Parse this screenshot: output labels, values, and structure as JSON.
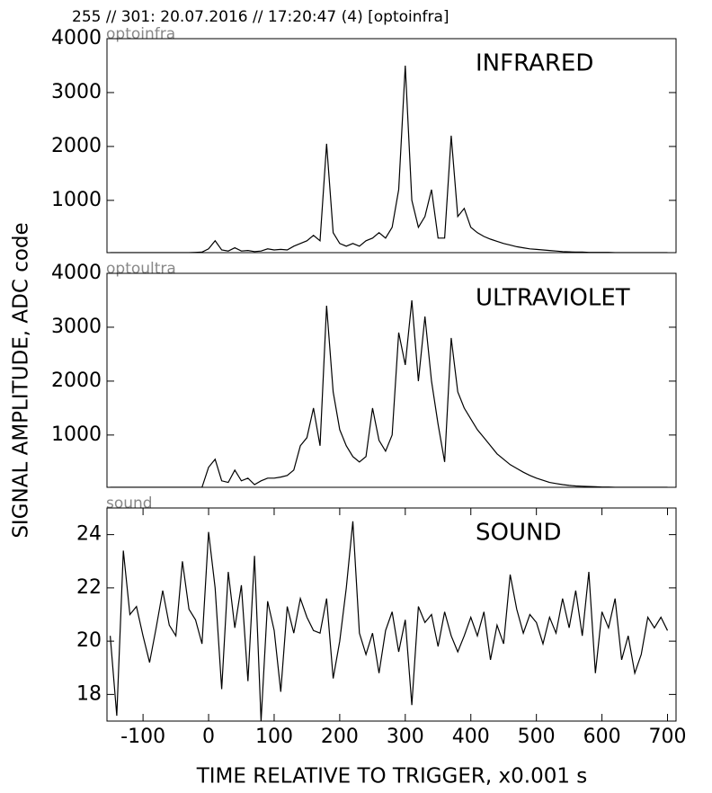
{
  "title": "255 // 301:   20.07.2016 // 17:20:47 (4)  [optoinfra]",
  "ylabel": "SIGNAL AMPLITUDE,  ADC code",
  "chart_data": [
    {
      "type": "line",
      "source": "optoinfra",
      "label": "INFRARED",
      "color": "#000000",
      "xlim": [
        -155,
        713
      ],
      "ylim": [
        30,
        4000
      ],
      "yticks": [
        1000,
        2000,
        3000,
        4000
      ],
      "x": [
        -150,
        -140,
        -130,
        -120,
        -110,
        -100,
        -90,
        -80,
        -70,
        -60,
        -50,
        -40,
        -30,
        -20,
        -10,
        0,
        10,
        20,
        30,
        40,
        50,
        60,
        70,
        80,
        90,
        100,
        110,
        120,
        130,
        140,
        150,
        160,
        170,
        180,
        190,
        200,
        210,
        220,
        230,
        240,
        250,
        260,
        270,
        280,
        290,
        300,
        310,
        320,
        330,
        340,
        350,
        360,
        370,
        380,
        390,
        400,
        410,
        420,
        430,
        440,
        450,
        460,
        470,
        480,
        490,
        500,
        510,
        520,
        530,
        540,
        550,
        560,
        570,
        580,
        590,
        600,
        610,
        620,
        630,
        640,
        650,
        660,
        670,
        680,
        690,
        700
      ],
      "values": [
        30,
        30,
        30,
        30,
        30,
        30,
        30,
        30,
        30,
        30,
        30,
        30,
        30,
        35,
        40,
        100,
        250,
        80,
        60,
        120,
        60,
        70,
        50,
        60,
        100,
        80,
        90,
        80,
        150,
        200,
        250,
        350,
        250,
        2050,
        400,
        200,
        150,
        200,
        150,
        250,
        300,
        400,
        300,
        500,
        1200,
        3500,
        1000,
        500,
        700,
        1200,
        300,
        300,
        2200,
        700,
        850,
        500,
        400,
        330,
        280,
        240,
        200,
        170,
        140,
        120,
        100,
        90,
        80,
        70,
        60,
        50,
        45,
        40,
        40,
        35,
        35,
        35,
        35,
        30,
        30,
        30,
        30,
        30,
        30,
        30,
        30,
        30
      ]
    },
    {
      "type": "line",
      "source": "optoultra",
      "label": "ULTRAVIOLET",
      "color": "#000000",
      "xlim": [
        -155,
        713
      ],
      "ylim": [
        30,
        4000
      ],
      "yticks": [
        1000,
        2000,
        3000,
        4000
      ],
      "x": [
        -150,
        -140,
        -130,
        -120,
        -110,
        -100,
        -90,
        -80,
        -70,
        -60,
        -50,
        -40,
        -30,
        -20,
        -10,
        0,
        10,
        20,
        30,
        40,
        50,
        60,
        70,
        80,
        90,
        100,
        110,
        120,
        130,
        140,
        150,
        160,
        170,
        180,
        190,
        200,
        210,
        220,
        230,
        240,
        250,
        260,
        270,
        280,
        290,
        300,
        310,
        320,
        330,
        340,
        350,
        360,
        370,
        380,
        390,
        400,
        410,
        420,
        430,
        440,
        450,
        460,
        470,
        480,
        490,
        500,
        510,
        520,
        530,
        540,
        550,
        560,
        570,
        580,
        590,
        600,
        610,
        620,
        630,
        640,
        650,
        660,
        670,
        680,
        690,
        700
      ],
      "values": [
        30,
        30,
        30,
        30,
        30,
        30,
        30,
        30,
        30,
        30,
        30,
        30,
        30,
        30,
        30,
        400,
        550,
        150,
        120,
        350,
        150,
        200,
        80,
        150,
        200,
        200,
        220,
        250,
        350,
        800,
        950,
        1500,
        800,
        3400,
        1800,
        1100,
        800,
        600,
        500,
        600,
        1500,
        900,
        700,
        1000,
        2900,
        2300,
        3500,
        2000,
        3200,
        2000,
        1200,
        500,
        2800,
        1800,
        1500,
        1300,
        1100,
        950,
        800,
        650,
        550,
        450,
        380,
        310,
        250,
        200,
        160,
        120,
        100,
        80,
        65,
        55,
        50,
        45,
        40,
        35,
        35,
        30,
        30,
        30,
        30,
        30,
        30,
        30,
        30,
        30
      ]
    },
    {
      "type": "line",
      "source": "sound",
      "label": "SOUND",
      "color": "#000000",
      "xlim": [
        -155,
        713
      ],
      "ylim": [
        17,
        25
      ],
      "yticks": [
        18,
        20,
        22,
        24
      ],
      "xlabel": "TIME RELATIVE TO TRIGGER,   x0.001 s",
      "xticks": [
        -100,
        0,
        100,
        200,
        300,
        400,
        500,
        600,
        700
      ],
      "x": [
        -150,
        -140,
        -130,
        -120,
        -110,
        -100,
        -90,
        -80,
        -70,
        -60,
        -50,
        -40,
        -30,
        -20,
        -10,
        0,
        10,
        20,
        30,
        40,
        50,
        60,
        70,
        80,
        90,
        100,
        110,
        120,
        130,
        140,
        150,
        160,
        170,
        180,
        190,
        200,
        210,
        220,
        230,
        240,
        250,
        260,
        270,
        280,
        290,
        300,
        310,
        320,
        330,
        340,
        350,
        360,
        370,
        380,
        390,
        400,
        410,
        420,
        430,
        440,
        450,
        460,
        470,
        480,
        490,
        500,
        510,
        520,
        530,
        540,
        550,
        560,
        570,
        580,
        590,
        600,
        610,
        620,
        630,
        640,
        650,
        660,
        670,
        680,
        690,
        700
      ],
      "values": [
        20.2,
        17.2,
        23.4,
        21.0,
        21.3,
        20.2,
        19.2,
        20.5,
        21.9,
        20.6,
        20.2,
        23.0,
        21.2,
        20.8,
        19.9,
        24.1,
        22.0,
        18.2,
        22.6,
        20.5,
        22.1,
        18.5,
        23.2,
        17.0,
        21.5,
        20.4,
        18.1,
        21.3,
        20.3,
        21.6,
        20.9,
        20.4,
        20.3,
        21.6,
        18.6,
        20.0,
        22.0,
        24.5,
        20.3,
        19.5,
        20.3,
        18.8,
        20.4,
        21.1,
        19.6,
        20.8,
        17.6,
        21.3,
        20.7,
        21.0,
        19.8,
        21.1,
        20.2,
        19.6,
        20.2,
        20.9,
        20.2,
        21.1,
        19.3,
        20.6,
        19.9,
        22.5,
        21.2,
        20.3,
        21.0,
        20.7,
        19.9,
        20.9,
        20.3,
        21.6,
        20.5,
        21.9,
        20.2,
        22.6,
        18.8,
        21.1,
        20.5,
        21.6,
        19.3,
        20.2,
        18.8,
        19.5,
        20.9,
        20.5,
        20.9,
        20.4
      ]
    }
  ]
}
